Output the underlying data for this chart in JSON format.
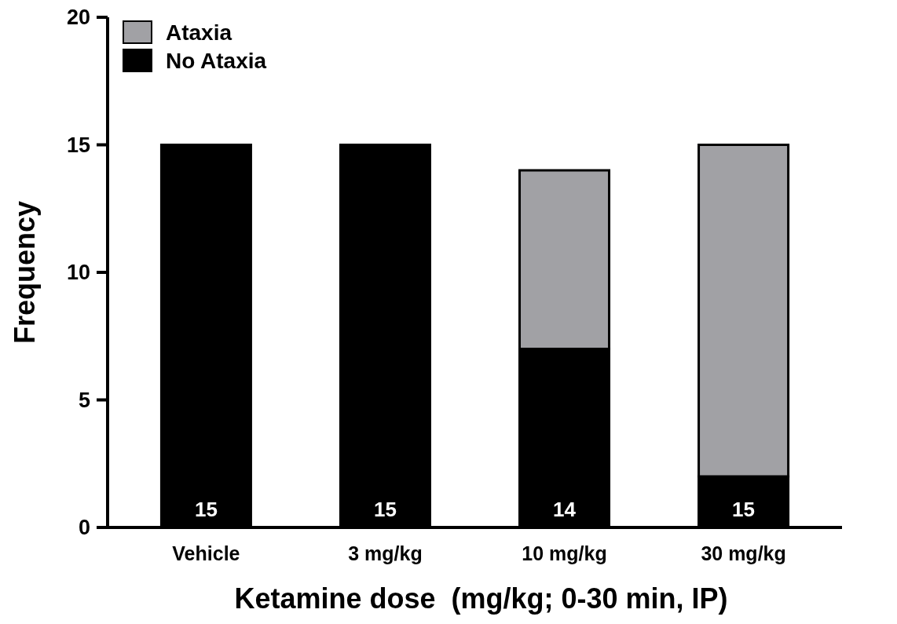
{
  "chart_data": {
    "type": "bar",
    "stacked": true,
    "xlabel": "Ketamine dose  (mg/kg; 0-30 min, IP)",
    "ylabel": "Frequency",
    "categories": [
      "Vehicle",
      "3 mg/kg",
      "10 mg/kg",
      "30 mg/kg"
    ],
    "series": [
      {
        "name": "No Ataxia",
        "color": "#000000",
        "values": [
          15,
          15,
          7,
          2
        ]
      },
      {
        "name": "Ataxia",
        "color": "#a1a1a5",
        "values": [
          0,
          0,
          7,
          13
        ]
      }
    ],
    "totals": [
      "15",
      "15",
      "14",
      "15"
    ],
    "ylim": [
      0,
      20
    ],
    "yticks": [
      0,
      5,
      10,
      15,
      20
    ],
    "grid": false,
    "legend": "top left"
  }
}
